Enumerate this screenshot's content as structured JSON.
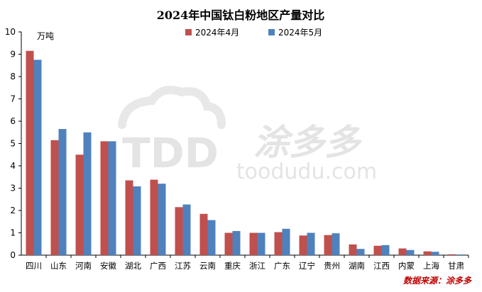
{
  "chart_data": {
    "type": "bar",
    "title": "2024年中国钛白粉地区产量对比",
    "unit_label": "万吨",
    "source": "数据来源：涂多多",
    "ylim": [
      0,
      10
    ],
    "yticks": [
      0,
      1,
      2,
      3,
      4,
      5,
      6,
      7,
      8,
      9,
      10
    ],
    "grid": false,
    "legend_position": "top",
    "categories": [
      "四川",
      "山东",
      "河南",
      "安徽",
      "湖北",
      "广西",
      "江苏",
      "云南",
      "重庆",
      "浙江",
      "广东",
      "辽宁",
      "贵州",
      "湖南",
      "江西",
      "内蒙",
      "上海",
      "甘肃"
    ],
    "series": [
      {
        "name": "2024年4月",
        "color": "#c0504d",
        "values": [
          9.15,
          5.15,
          4.5,
          5.1,
          3.35,
          3.38,
          2.15,
          1.85,
          1.0,
          1.0,
          1.03,
          0.88,
          0.9,
          0.48,
          0.42,
          0.3,
          0.17,
          0.04
        ]
      },
      {
        "name": "2024年5月",
        "color": "#4f81bd",
        "values": [
          8.75,
          5.65,
          5.5,
          5.1,
          3.08,
          3.2,
          2.27,
          1.57,
          1.08,
          1.0,
          1.18,
          1.0,
          0.98,
          0.28,
          0.45,
          0.23,
          0.15,
          0.03
        ]
      }
    ]
  },
  "watermark": {
    "logo_text": "TDD",
    "brand_text": "涂多多",
    "domain_text": "toodudu.com"
  }
}
